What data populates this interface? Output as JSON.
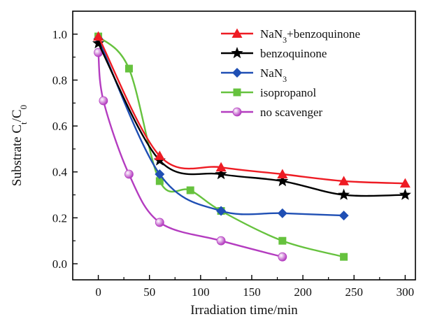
{
  "chart_data": {
    "type": "line",
    "title": "",
    "xlabel": "Irradiation time/min",
    "ylabel": "Substrate C",
    "ylabel_sub1": "t",
    "ylabel_sep": "/C",
    "ylabel_sub2": "0",
    "xlim": [
      -25,
      310
    ],
    "ylim": [
      -0.07,
      1.1
    ],
    "x_ticks": [
      0,
      50,
      100,
      150,
      200,
      250,
      300
    ],
    "x_tick_labels": [
      "0",
      "50",
      "100",
      "150",
      "200",
      "250",
      "300"
    ],
    "y_ticks": [
      0.0,
      0.2,
      0.4,
      0.6,
      0.8,
      1.0
    ],
    "y_tick_labels": [
      "0.0",
      "0.2",
      "0.4",
      "0.6",
      "0.8",
      "1.0"
    ],
    "grid": false,
    "legend_position": "top-right",
    "series": [
      {
        "key": "nan3-benzoquinone",
        "name_parts": [
          {
            "t": "NaN"
          },
          {
            "t": "3",
            "sub": true
          },
          {
            "t": "+benzoquinone"
          }
        ],
        "color": "#ee1c24",
        "marker": "triangle",
        "x": [
          0,
          60,
          120,
          180,
          240,
          300
        ],
        "y": [
          0.99,
          0.47,
          0.42,
          0.39,
          0.36,
          0.35
        ]
      },
      {
        "key": "benzoquinone",
        "name_parts": [
          {
            "t": "benzoquinone"
          }
        ],
        "color": "#000000",
        "marker": "star",
        "x": [
          0,
          60,
          120,
          180,
          240,
          300
        ],
        "y": [
          0.96,
          0.45,
          0.39,
          0.36,
          0.3,
          0.3
        ]
      },
      {
        "key": "nan3",
        "name_parts": [
          {
            "t": "NaN"
          },
          {
            "t": "3",
            "sub": true
          }
        ],
        "color": "#1f4fb4",
        "marker": "diamond",
        "x": [
          0,
          60,
          120,
          180,
          240
        ],
        "y": [
          0.98,
          0.39,
          0.23,
          0.22,
          0.21
        ]
      },
      {
        "key": "isopropanol",
        "name_parts": [
          {
            "t": "isopropanol"
          }
        ],
        "color": "#66c23e",
        "marker": "square",
        "x": [
          0,
          30,
          60,
          90,
          120,
          180,
          240
        ],
        "y": [
          0.99,
          0.85,
          0.36,
          0.32,
          0.23,
          0.1,
          0.03
        ]
      },
      {
        "key": "no-scavenger",
        "name_parts": [
          {
            "t": "no scavenger"
          }
        ],
        "color": "#b43cc0",
        "marker": "circle",
        "x": [
          0,
          5,
          30,
          60,
          120,
          180
        ],
        "y": [
          0.92,
          0.71,
          0.39,
          0.18,
          0.1,
          0.03
        ]
      }
    ]
  }
}
